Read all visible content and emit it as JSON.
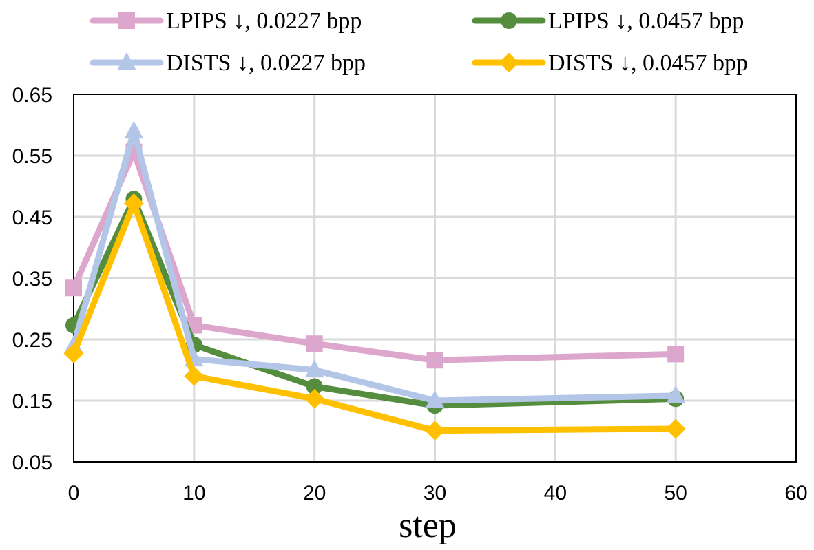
{
  "chart_data": {
    "type": "line",
    "title": "",
    "xlabel": "step",
    "ylabel": "",
    "xlim": [
      0,
      60
    ],
    "ylim": [
      0.05,
      0.65
    ],
    "xticks": [
      0,
      10,
      20,
      30,
      40,
      50,
      60
    ],
    "xtick_labels": [
      "0",
      "10",
      "20",
      "30",
      "40",
      "50",
      "60"
    ],
    "yticks": [
      0.05,
      0.15,
      0.25,
      0.35,
      0.45,
      0.55,
      0.65
    ],
    "ytick_labels": [
      "0.05",
      "0.15",
      "0.25",
      "0.35",
      "0.45",
      "0.55",
      "0.65"
    ],
    "grid": true,
    "legend_position": "top",
    "x": [
      0,
      5,
      10,
      20,
      30,
      50
    ],
    "series": [
      {
        "name": "LPIPS ↓, 0.0227 bpp",
        "color": "#DDA6CC",
        "marker": "square",
        "values": [
          0.334,
          0.556,
          0.273,
          0.243,
          0.216,
          0.226
        ]
      },
      {
        "name": "LPIPS ↓, 0.0457 bpp",
        "color": "#548D3E",
        "marker": "circle",
        "values": [
          0.273,
          0.479,
          0.241,
          0.173,
          0.142,
          0.153
        ]
      },
      {
        "name": "DISTS ↓, 0.0227 bpp",
        "color": "#B4C6E7",
        "marker": "triangle",
        "values": [
          0.24,
          0.59,
          0.218,
          0.2,
          0.15,
          0.158
        ]
      },
      {
        "name": "DISTS ↓, 0.0457 bpp",
        "color": "#FFC000",
        "marker": "diamond",
        "values": [
          0.227,
          0.472,
          0.19,
          0.153,
          0.101,
          0.104
        ]
      }
    ]
  }
}
